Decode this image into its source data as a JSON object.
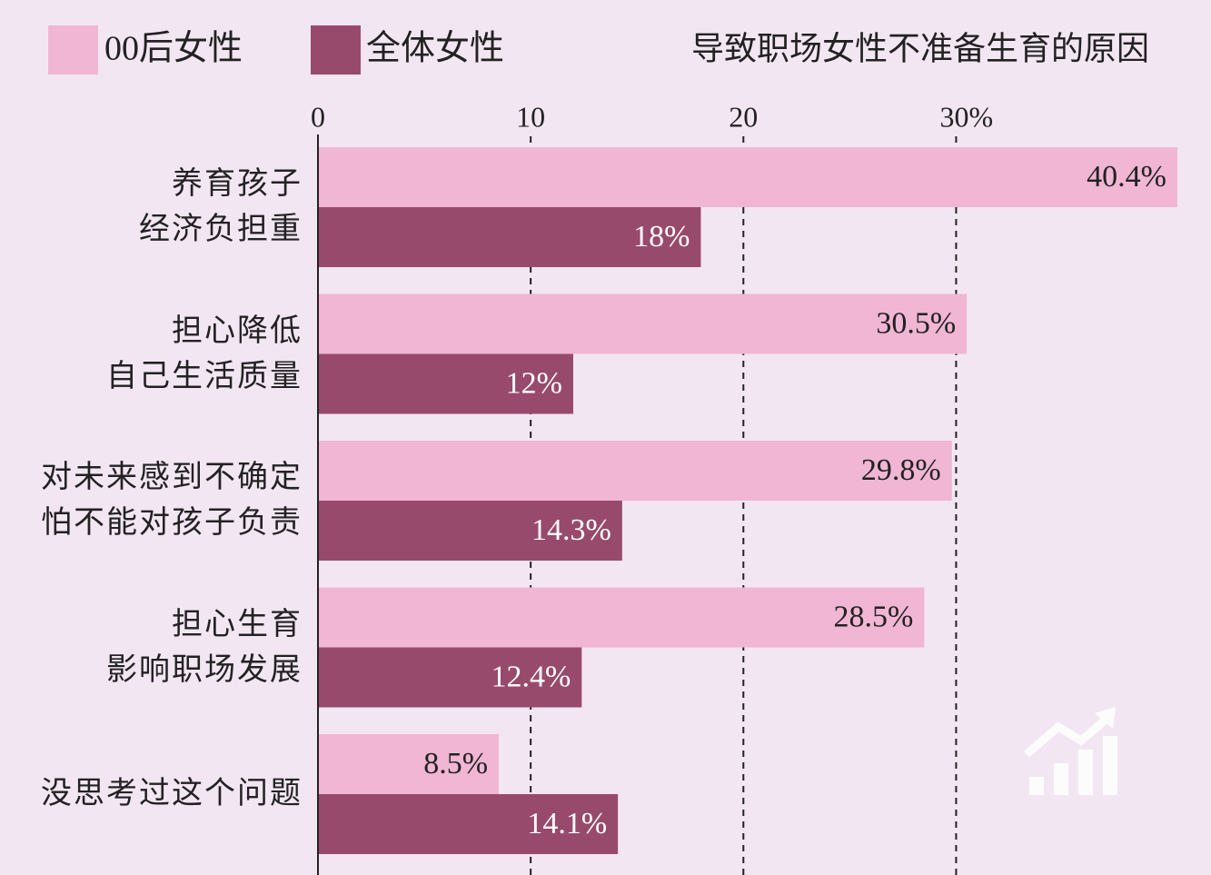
{
  "chart_data": {
    "type": "hbar",
    "title": "导致职场女性不准备生育的原因",
    "categories": [
      "养育孩子\n经济负担重",
      "担心降低\n自己生活质量",
      "对未来感到不确定\n怕不能对孩子负责",
      "担心生育\n影响职场发展",
      "没思考过这个问题"
    ],
    "series": [
      {
        "name": "00后女性",
        "color": "#f0b6d4",
        "values": [
          40.4,
          30.5,
          29.8,
          28.5,
          8.5
        ],
        "value_labels": [
          "40.4%",
          "30.5%",
          "29.8%",
          "28.5%",
          "8.5%"
        ]
      },
      {
        "name": "全体女性",
        "color": "#984a6c",
        "values": [
          18,
          12,
          14.3,
          12.4,
          14.1
        ],
        "value_labels": [
          "18%",
          "12%",
          "14.3%",
          "12.4%",
          "14.1%"
        ]
      }
    ],
    "xlim": [
      0,
      41
    ],
    "xticks": [
      0,
      10,
      20,
      {
        "value": 30,
        "label": "30%"
      }
    ],
    "grid": true
  }
}
